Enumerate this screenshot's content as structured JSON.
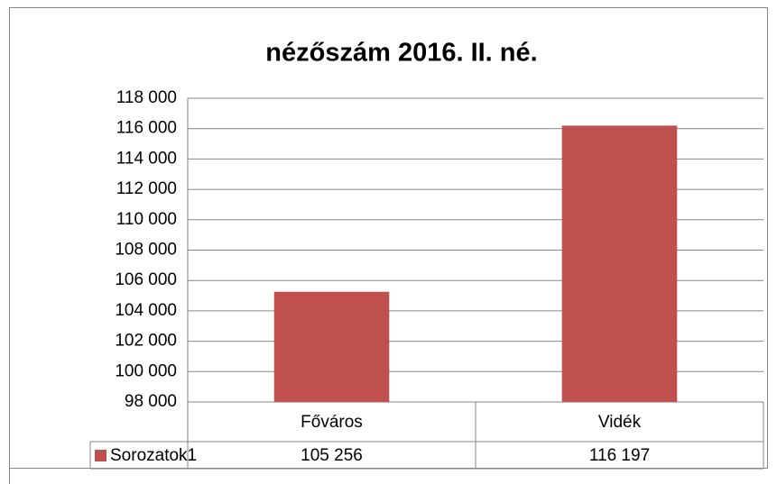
{
  "chart_data": {
    "type": "bar",
    "title": "nézőszám 2016. II. né.",
    "categories": [
      "Főváros",
      "Vidék"
    ],
    "series": [
      {
        "name": "Sorozatok1",
        "color": "#c0504d",
        "values": [
          105256,
          116197
        ],
        "value_labels": [
          "105 256",
          "116 197"
        ]
      }
    ],
    "ylim": [
      98000,
      118000
    ],
    "yticks": [
      {
        "value": 98000,
        "label": "98 000"
      },
      {
        "value": 100000,
        "label": "100 000"
      },
      {
        "value": 102000,
        "label": "102 000"
      },
      {
        "value": 104000,
        "label": "104 000"
      },
      {
        "value": 106000,
        "label": "106 000"
      },
      {
        "value": 108000,
        "label": "108 000"
      },
      {
        "value": 110000,
        "label": "110 000"
      },
      {
        "value": 112000,
        "label": "112 000"
      },
      {
        "value": 114000,
        "label": "114 000"
      },
      {
        "value": 116000,
        "label": "116 000"
      },
      {
        "value": 118000,
        "label": "118 000"
      }
    ],
    "grid": true
  }
}
